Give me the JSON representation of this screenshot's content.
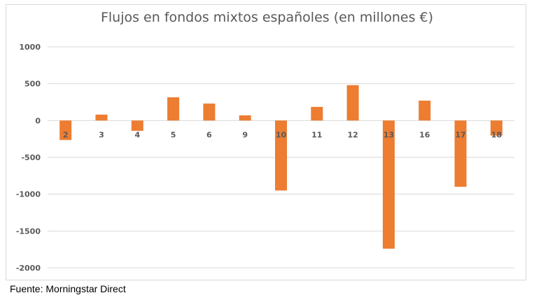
{
  "chart_data": {
    "type": "bar",
    "title": "Flujos en fondos mixtos españoles (en millones €)",
    "xlabel": "",
    "ylabel": "",
    "categories": [
      "2",
      "3",
      "4",
      "5",
      "6",
      "9",
      "10",
      "11",
      "12",
      "13",
      "16",
      "17",
      "18"
    ],
    "values": [
      -265,
      80,
      -140,
      315,
      230,
      70,
      -950,
      185,
      480,
      -1740,
      270,
      -900,
      -205
    ],
    "ylim": [
      -2000,
      1000
    ],
    "yticks": [
      "1000",
      "500",
      "0",
      "-500",
      "-1000",
      "-1500",
      "-2000"
    ],
    "ytick_values": [
      1000,
      500,
      0,
      -500,
      -1000,
      -1500,
      -2000
    ],
    "grid": true,
    "legend": "none",
    "bar_color": "#ed7d31"
  },
  "source": "Fuente: Morningstar Direct"
}
